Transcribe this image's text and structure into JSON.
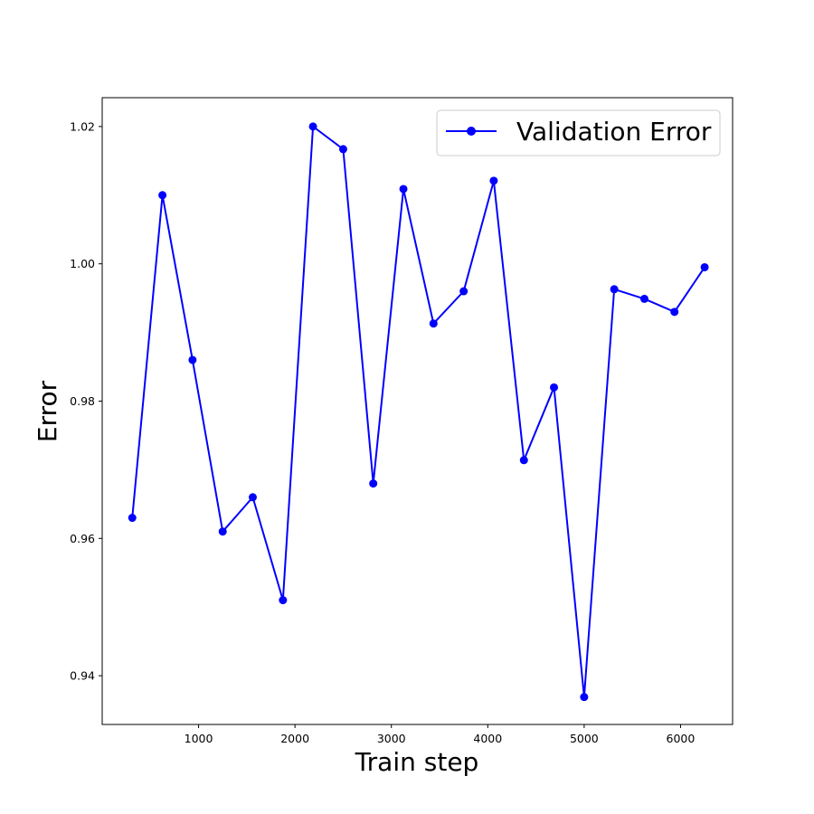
{
  "chart_data": {
    "type": "line",
    "title": "",
    "xlabel": "Train step",
    "ylabel": "Error",
    "xlim": [
      0,
      6540
    ],
    "ylim": [
      0.9329,
      1.0242
    ],
    "xticks": [
      1000,
      2000,
      3000,
      4000,
      5000,
      6000
    ],
    "yticks": [
      0.94,
      0.96,
      0.98,
      1.0,
      1.02
    ],
    "ytick_labels": [
      "0.94",
      "0.96",
      "0.98",
      "1.00",
      "1.02"
    ],
    "grid": false,
    "legend_position": "top-right",
    "series": [
      {
        "name": "Validation Error",
        "color": "#0000ff",
        "marker": "circle",
        "x": [
          312,
          625,
          937,
          1250,
          1562,
          1875,
          2187,
          2500,
          2812,
          3125,
          3437,
          3750,
          4062,
          4375,
          4687,
          5000,
          5312,
          5625,
          5937,
          6250
        ],
        "y": [
          0.963,
          1.01,
          0.986,
          0.961,
          0.966,
          0.951,
          1.02,
          1.0167,
          0.968,
          1.0109,
          0.9913,
          0.996,
          1.0121,
          0.9714,
          0.982,
          0.9369,
          0.9963,
          0.9949,
          0.993,
          0.9995
        ]
      }
    ]
  }
}
